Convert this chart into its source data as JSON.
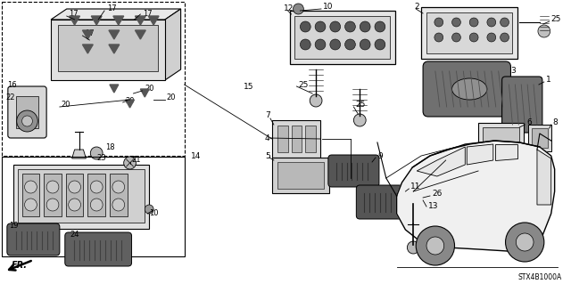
{
  "background_color": "#ffffff",
  "diagram_code": "STX4B1000A",
  "fig_width": 6.4,
  "fig_height": 3.19,
  "dpi": 100,
  "text_color": "#000000",
  "line_color": "#000000"
}
